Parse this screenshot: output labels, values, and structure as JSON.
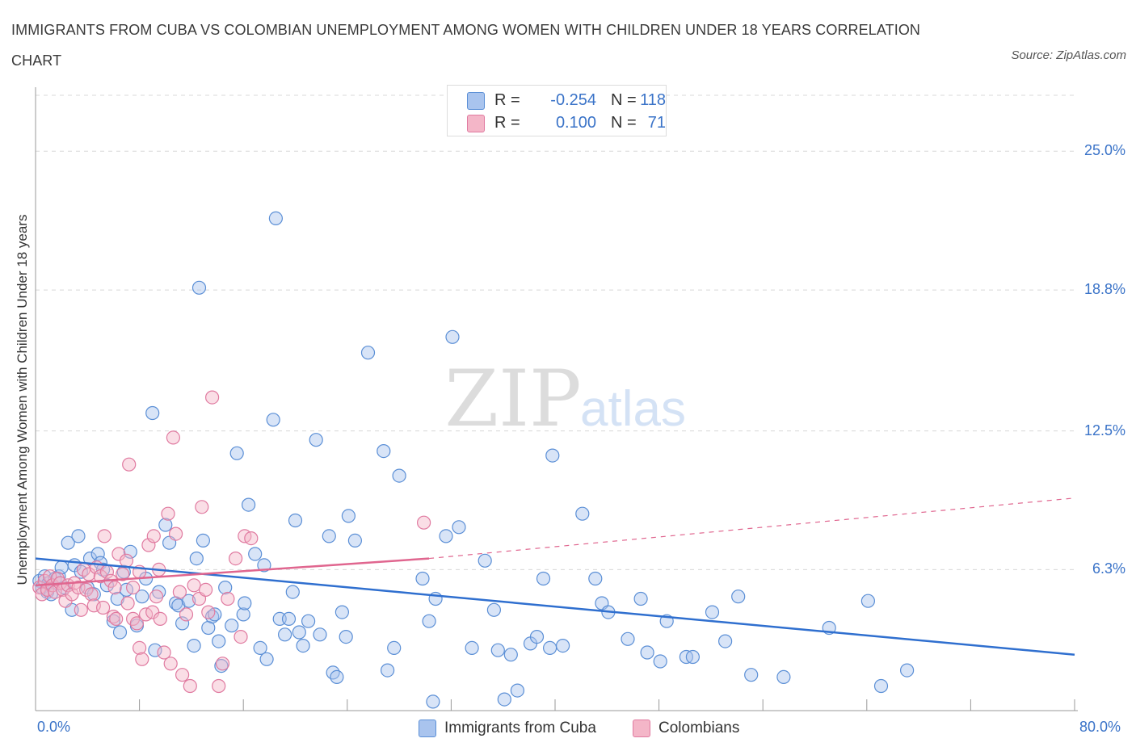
{
  "header": {
    "title": "IMMIGRANTS FROM CUBA VS COLOMBIAN UNEMPLOYMENT AMONG WOMEN WITH CHILDREN UNDER 18 YEARS CORRELATION CHART",
    "source": "Source: ZipAtlas.com"
  },
  "watermark": {
    "zip": "ZIP",
    "atlas": "atlas"
  },
  "legend_top": {
    "rows": [
      {
        "r_label": "R =",
        "r_value": "-0.254",
        "n_label": "N =",
        "n_value": "118",
        "color": "#a9c4ee"
      },
      {
        "r_label": "R =",
        "r_value": "0.100",
        "n_label": "N =",
        "n_value": "71",
        "color": "#f4b6c8"
      }
    ]
  },
  "legend_bottom": {
    "items": [
      {
        "label": "Immigrants from Cuba",
        "color": "#a9c4ee"
      },
      {
        "label": "Colombians",
        "color": "#f4b6c8"
      }
    ]
  },
  "colors": {
    "blue_fill": "#a9c4ee",
    "blue_stroke": "#5b8fd6",
    "blue_line": "#2f6fcf",
    "pink_fill": "#f4b6c8",
    "pink_stroke": "#e07aa0",
    "pink_line": "#e0668f",
    "grid": "#d8d8d8",
    "tick_label": "#3a73c8"
  },
  "chart_data": {
    "type": "scatter",
    "title": "IMMIGRANTS FROM CUBA VS COLOMBIAN UNEMPLOYMENT AMONG WOMEN WITH CHILDREN UNDER 18 YEARS CORRELATION CHART",
    "xlabel": "",
    "ylabel": "Unemployment Among Women with Children Under 18 years",
    "xlim": [
      0,
      80
    ],
    "ylim": [
      0,
      27.5
    ],
    "x_tick_labels": [
      "0.0%",
      "80.0%"
    ],
    "y_ticks": [
      6.3,
      12.5,
      18.8,
      25.0
    ],
    "y_tick_labels": [
      "6.3%",
      "12.5%",
      "18.8%",
      "25.0%"
    ],
    "grid": "horizontal dashed",
    "legend": "top-center",
    "series": [
      {
        "name": "Immigrants from Cuba",
        "r": -0.254,
        "n": 118,
        "trend": {
          "x": [
            0,
            80
          ],
          "y": [
            6.8,
            2.5
          ]
        },
        "points": [
          [
            0.3,
            5.8
          ],
          [
            0.5,
            5.5
          ],
          [
            0.7,
            6.0
          ],
          [
            0.9,
            5.3
          ],
          [
            1.0,
            5.7
          ],
          [
            1.2,
            5.2
          ],
          [
            1.5,
            5.9
          ],
          [
            1.8,
            6.0
          ],
          [
            2.0,
            6.4
          ],
          [
            2.2,
            5.5
          ],
          [
            2.5,
            7.5
          ],
          [
            2.8,
            4.5
          ],
          [
            3.0,
            6.5
          ],
          [
            3.3,
            7.8
          ],
          [
            3.5,
            6.2
          ],
          [
            4.0,
            5.5
          ],
          [
            4.2,
            6.8
          ],
          [
            4.5,
            5.2
          ],
          [
            4.8,
            7.0
          ],
          [
            5.0,
            6.6
          ],
          [
            5.2,
            6.3
          ],
          [
            5.5,
            5.6
          ],
          [
            6.0,
            4.0
          ],
          [
            6.3,
            5.0
          ],
          [
            6.5,
            3.5
          ],
          [
            6.8,
            6.2
          ],
          [
            7.0,
            5.4
          ],
          [
            7.3,
            7.1
          ],
          [
            7.8,
            3.8
          ],
          [
            8.2,
            5.1
          ],
          [
            8.5,
            5.9
          ],
          [
            9.0,
            13.3
          ],
          [
            9.2,
            2.7
          ],
          [
            9.5,
            5.3
          ],
          [
            10.0,
            8.3
          ],
          [
            10.3,
            7.5
          ],
          [
            10.8,
            4.8
          ],
          [
            11.0,
            4.7
          ],
          [
            11.3,
            3.9
          ],
          [
            11.8,
            4.9
          ],
          [
            12.2,
            2.9
          ],
          [
            12.4,
            6.8
          ],
          [
            12.6,
            18.9
          ],
          [
            12.9,
            7.6
          ],
          [
            13.3,
            3.7
          ],
          [
            13.6,
            4.2
          ],
          [
            13.8,
            4.3
          ],
          [
            14.1,
            3.1
          ],
          [
            14.3,
            2.0
          ],
          [
            14.6,
            5.5
          ],
          [
            15.1,
            3.8
          ],
          [
            15.5,
            11.5
          ],
          [
            16.0,
            4.3
          ],
          [
            16.1,
            4.8
          ],
          [
            16.4,
            9.2
          ],
          [
            16.9,
            7.0
          ],
          [
            17.3,
            2.8
          ],
          [
            17.6,
            6.5
          ],
          [
            17.8,
            2.3
          ],
          [
            18.3,
            13.0
          ],
          [
            18.5,
            22.0
          ],
          [
            18.8,
            4.1
          ],
          [
            19.2,
            3.4
          ],
          [
            19.5,
            4.1
          ],
          [
            19.8,
            5.3
          ],
          [
            20.0,
            8.5
          ],
          [
            20.3,
            3.5
          ],
          [
            20.6,
            2.9
          ],
          [
            21.0,
            4.0
          ],
          [
            21.6,
            12.1
          ],
          [
            21.9,
            3.4
          ],
          [
            22.6,
            7.8
          ],
          [
            22.9,
            1.7
          ],
          [
            23.2,
            1.5
          ],
          [
            23.6,
            4.4
          ],
          [
            23.9,
            3.3
          ],
          [
            24.1,
            8.7
          ],
          [
            24.6,
            7.6
          ],
          [
            25.6,
            16.0
          ],
          [
            26.8,
            11.6
          ],
          [
            27.1,
            1.8
          ],
          [
            27.6,
            2.8
          ],
          [
            28.0,
            10.5
          ],
          [
            29.8,
            5.9
          ],
          [
            30.3,
            4.0
          ],
          [
            30.6,
            0.4
          ],
          [
            30.8,
            5.0
          ],
          [
            31.6,
            7.8
          ],
          [
            32.1,
            16.7
          ],
          [
            32.6,
            8.2
          ],
          [
            33.6,
            2.8
          ],
          [
            34.6,
            6.7
          ],
          [
            35.3,
            4.5
          ],
          [
            35.6,
            2.7
          ],
          [
            36.1,
            0.5
          ],
          [
            36.6,
            2.5
          ],
          [
            37.1,
            0.9
          ],
          [
            38.1,
            3.0
          ],
          [
            38.6,
            3.3
          ],
          [
            39.1,
            5.9
          ],
          [
            39.6,
            2.8
          ],
          [
            39.8,
            11.4
          ],
          [
            40.6,
            2.9
          ],
          [
            42.1,
            8.8
          ],
          [
            43.1,
            5.9
          ],
          [
            43.6,
            4.8
          ],
          [
            44.1,
            4.4
          ],
          [
            45.6,
            3.2
          ],
          [
            46.6,
            5.0
          ],
          [
            47.1,
            2.6
          ],
          [
            48.1,
            2.2
          ],
          [
            48.6,
            4.0
          ],
          [
            50.1,
            2.4
          ],
          [
            50.6,
            2.4
          ],
          [
            52.1,
            4.4
          ],
          [
            53.1,
            3.1
          ],
          [
            54.1,
            5.1
          ],
          [
            55.1,
            1.6
          ],
          [
            57.6,
            1.5
          ],
          [
            61.1,
            3.7
          ],
          [
            64.1,
            4.9
          ],
          [
            65.1,
            1.1
          ],
          [
            67.1,
            1.8
          ]
        ]
      },
      {
        "name": "Colombians",
        "r": 0.1,
        "n": 71,
        "trend": {
          "x": [
            0,
            30.3
          ],
          "y": [
            5.6,
            6.8
          ],
          "extension": {
            "x": [
              30.3,
              80
            ],
            "y": [
              6.8,
              9.5
            ]
          }
        },
        "points": [
          [
            0.3,
            5.5
          ],
          [
            0.5,
            5.2
          ],
          [
            0.7,
            5.8
          ],
          [
            0.9,
            5.4
          ],
          [
            1.1,
            6.0
          ],
          [
            1.3,
            5.6
          ],
          [
            1.5,
            5.3
          ],
          [
            1.7,
            5.9
          ],
          [
            1.9,
            5.7
          ],
          [
            2.1,
            5.4
          ],
          [
            2.3,
            4.9
          ],
          [
            2.5,
            5.6
          ],
          [
            2.8,
            5.2
          ],
          [
            3.0,
            5.7
          ],
          [
            3.3,
            5.5
          ],
          [
            3.5,
            4.5
          ],
          [
            3.7,
            6.3
          ],
          [
            3.9,
            5.4
          ],
          [
            4.1,
            6.1
          ],
          [
            4.3,
            5.2
          ],
          [
            4.5,
            4.7
          ],
          [
            4.7,
            6.4
          ],
          [
            5.0,
            6.0
          ],
          [
            5.2,
            4.6
          ],
          [
            5.3,
            7.8
          ],
          [
            5.5,
            6.2
          ],
          [
            5.8,
            5.8
          ],
          [
            6.0,
            4.2
          ],
          [
            6.1,
            5.5
          ],
          [
            6.2,
            4.1
          ],
          [
            6.4,
            7.0
          ],
          [
            6.7,
            6.1
          ],
          [
            7.0,
            6.7
          ],
          [
            7.1,
            4.8
          ],
          [
            7.2,
            11.0
          ],
          [
            7.5,
            5.5
          ],
          [
            7.5,
            4.1
          ],
          [
            7.8,
            3.9
          ],
          [
            8.0,
            6.2
          ],
          [
            8.0,
            2.8
          ],
          [
            8.2,
            2.3
          ],
          [
            8.5,
            4.3
          ],
          [
            8.7,
            7.4
          ],
          [
            9.0,
            4.4
          ],
          [
            9.1,
            7.8
          ],
          [
            9.3,
            5.1
          ],
          [
            9.5,
            6.3
          ],
          [
            9.6,
            4.1
          ],
          [
            9.9,
            2.6
          ],
          [
            10.2,
            8.8
          ],
          [
            10.4,
            2.1
          ],
          [
            10.6,
            12.2
          ],
          [
            10.8,
            7.9
          ],
          [
            11.1,
            5.3
          ],
          [
            11.3,
            1.6
          ],
          [
            11.6,
            4.3
          ],
          [
            11.9,
            1.1
          ],
          [
            12.2,
            5.6
          ],
          [
            12.6,
            5.0
          ],
          [
            12.8,
            9.1
          ],
          [
            13.1,
            5.4
          ],
          [
            13.3,
            4.4
          ],
          [
            13.6,
            14.0
          ],
          [
            14.1,
            1.1
          ],
          [
            14.4,
            2.1
          ],
          [
            14.8,
            5.0
          ],
          [
            15.4,
            6.8
          ],
          [
            15.8,
            3.3
          ],
          [
            16.1,
            7.8
          ],
          [
            16.6,
            7.7
          ],
          [
            29.9,
            8.4
          ]
        ]
      }
    ]
  }
}
